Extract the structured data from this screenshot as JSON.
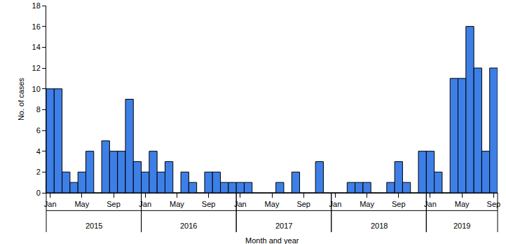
{
  "chart_data": {
    "type": "bar",
    "x_label": "Month and year",
    "y_label": "No. of cases",
    "categories": [
      "Jan",
      null,
      null,
      null,
      "May",
      null,
      null,
      null,
      "Sep",
      null,
      null,
      null,
      "Jan",
      null,
      null,
      null,
      "May",
      null,
      null,
      null,
      "Sep",
      null,
      null,
      null,
      "Jan",
      null,
      null,
      null,
      "May",
      null,
      null,
      null,
      "Sep",
      null,
      null,
      null,
      "Jan",
      null,
      null,
      null,
      "May",
      null,
      null,
      null,
      "Sep",
      null,
      null,
      null,
      "Jan",
      null,
      null,
      null,
      "May",
      null,
      null,
      null,
      "Sep"
    ],
    "category_groups": [
      {
        "label": "2015",
        "count": 12
      },
      {
        "label": "2016",
        "count": 12
      },
      {
        "label": "2017",
        "count": 12
      },
      {
        "label": "2018",
        "count": 12
      },
      {
        "label": "2019",
        "count": 9
      }
    ],
    "values": [
      10,
      10,
      2,
      1,
      2,
      4,
      0,
      5,
      4,
      4,
      9,
      3,
      2,
      4,
      2,
      3,
      0,
      2,
      1,
      0,
      2,
      2,
      1,
      1,
      1,
      1,
      0,
      0,
      0,
      1,
      0,
      2,
      0,
      0,
      3,
      0,
      0,
      0,
      1,
      1,
      1,
      0,
      0,
      1,
      3,
      1,
      0,
      4,
      4,
      2,
      0,
      11,
      11,
      16,
      12,
      4,
      12
    ],
    "color": "#3d7fe6",
    "ylim": [
      0,
      18
    ],
    "yticks": [
      0,
      2,
      4,
      6,
      8,
      10,
      12,
      14,
      16,
      18
    ],
    "grid": false
  }
}
